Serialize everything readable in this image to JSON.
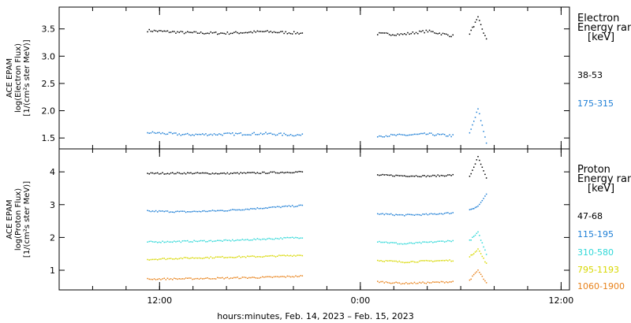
{
  "chart_data": [
    {
      "type": "scatter",
      "panel": "electron",
      "ylabel_lines": [
        "ACE EPAM",
        "log(Electron Flux)",
        "[1/(cm²s ster MeV)]"
      ],
      "ylim": [
        1.3,
        3.9
      ],
      "yticks": [
        1.5,
        2.0,
        2.5,
        3.0,
        3.5
      ],
      "ytick_labels": [
        "1.5",
        "2.0",
        "2.5",
        "3.0",
        "3.5"
      ],
      "legend_title": [
        "Electron",
        "Energy ran",
        "[keV]"
      ],
      "series": [
        {
          "name": "38-53",
          "color": "#000000",
          "level": 3.42,
          "segments": [
            {
              "start": "2023-02-14 11:15",
              "end": "2023-02-14 20:30",
              "values": [
                3.47,
                3.43,
                3.42,
                3.45,
                3.42
              ]
            },
            {
              "start": "2023-02-15 01:00",
              "end": "2023-02-15 05:30",
              "values": [
                3.41,
                3.4,
                3.46,
                3.37
              ]
            },
            {
              "start": "2023-02-15 06:30",
              "end": "2023-02-15 07:30",
              "values": [
                3.42,
                3.7,
                3.3
              ]
            }
          ]
        },
        {
          "name": "175-315",
          "color": "#1e7fd6",
          "level": 1.57,
          "segments": [
            {
              "start": "2023-02-14 11:15",
              "end": "2023-02-14 20:30",
              "values": [
                1.6,
                1.56,
                1.57,
                1.58,
                1.55
              ]
            },
            {
              "start": "2023-02-15 01:00",
              "end": "2023-02-15 05:30",
              "values": [
                1.54,
                1.55,
                1.57,
                1.54
              ]
            },
            {
              "start": "2023-02-15 06:30",
              "end": "2023-02-15 07:30",
              "values": [
                1.58,
                2.03,
                1.42
              ]
            }
          ]
        }
      ]
    },
    {
      "type": "scatter",
      "panel": "proton",
      "ylabel_lines": [
        "ACE EPAM",
        "log(Proton Flux)",
        "[1/(cm²s ster MeV)]"
      ],
      "ylim": [
        0.4,
        4.7
      ],
      "yticks": [
        1,
        2,
        3,
        4
      ],
      "ytick_labels": [
        "1",
        "2",
        "3",
        "4"
      ],
      "legend_title": [
        "Proton",
        "Energy ran",
        "[keV]"
      ],
      "series": [
        {
          "name": "47-68",
          "color": "#000000",
          "segments": [
            {
              "start": "2023-02-14 11:15",
              "end": "2023-02-14 20:30",
              "values": [
                3.95,
                3.96,
                3.95,
                3.97,
                4.0
              ]
            },
            {
              "start": "2023-02-15 01:00",
              "end": "2023-02-15 05:30",
              "values": [
                3.9,
                3.88,
                3.87,
                3.9
              ]
            },
            {
              "start": "2023-02-15 06:30",
              "end": "2023-02-15 07:30",
              "values": [
                3.85,
                4.45,
                3.8
              ]
            }
          ]
        },
        {
          "name": "115-195",
          "color": "#1e7fd6",
          "segments": [
            {
              "start": "2023-02-14 11:15",
              "end": "2023-02-14 20:30",
              "values": [
                2.8,
                2.78,
                2.82,
                2.9,
                2.97
              ]
            },
            {
              "start": "2023-02-15 01:00",
              "end": "2023-02-15 05:30",
              "values": [
                2.72,
                2.68,
                2.7,
                2.75
              ]
            },
            {
              "start": "2023-02-15 06:30",
              "end": "2023-02-15 07:30",
              "values": [
                2.85,
                2.95,
                3.3
              ]
            }
          ]
        },
        {
          "name": "310-580",
          "color": "#2fd8d8",
          "segments": [
            {
              "start": "2023-02-14 11:15",
              "end": "2023-02-14 20:30",
              "values": [
                1.86,
                1.88,
                1.9,
                1.95,
                2.0
              ]
            },
            {
              "start": "2023-02-15 01:00",
              "end": "2023-02-15 05:30",
              "values": [
                1.88,
                1.8,
                1.85,
                1.9
              ]
            },
            {
              "start": "2023-02-15 06:30",
              "end": "2023-02-15 07:30",
              "values": [
                1.9,
                2.15,
                1.5
              ]
            }
          ]
        },
        {
          "name": "795-1193",
          "color": "#d8d800",
          "segments": [
            {
              "start": "2023-02-14 11:15",
              "end": "2023-02-14 20:30",
              "values": [
                1.33,
                1.37,
                1.4,
                1.42,
                1.46
              ]
            },
            {
              "start": "2023-02-15 01:00",
              "end": "2023-02-15 05:30",
              "values": [
                1.3,
                1.25,
                1.28,
                1.3
              ]
            },
            {
              "start": "2023-02-15 06:30",
              "end": "2023-02-15 07:30",
              "values": [
                1.4,
                1.65,
                1.2
              ]
            }
          ]
        },
        {
          "name": "1060-1900",
          "color": "#e8821a",
          "segments": [
            {
              "start": "2023-02-14 11:15",
              "end": "2023-02-14 20:30",
              "values": [
                0.73,
                0.74,
                0.76,
                0.78,
                0.82
              ]
            },
            {
              "start": "2023-02-15 01:00",
              "end": "2023-02-15 05:30",
              "values": [
                0.65,
                0.6,
                0.62,
                0.65
              ]
            },
            {
              "start": "2023-02-15 06:30",
              "end": "2023-02-15 07:30",
              "values": [
                0.7,
                1.0,
                0.6
              ]
            }
          ]
        }
      ]
    }
  ],
  "x_axis": {
    "start": "2023-02-14 06:00",
    "end": "2023-02-15 12:30",
    "ticks": [
      "2023-02-14 12:00",
      "2023-02-15 00:00",
      "2023-02-15 12:00"
    ],
    "tick_labels": [
      "12:00",
      "0:00",
      "12:00"
    ],
    "minor_step_hours": 2,
    "caption": "hours:minutes, Feb. 14, 2023 – Feb. 15, 2023"
  }
}
